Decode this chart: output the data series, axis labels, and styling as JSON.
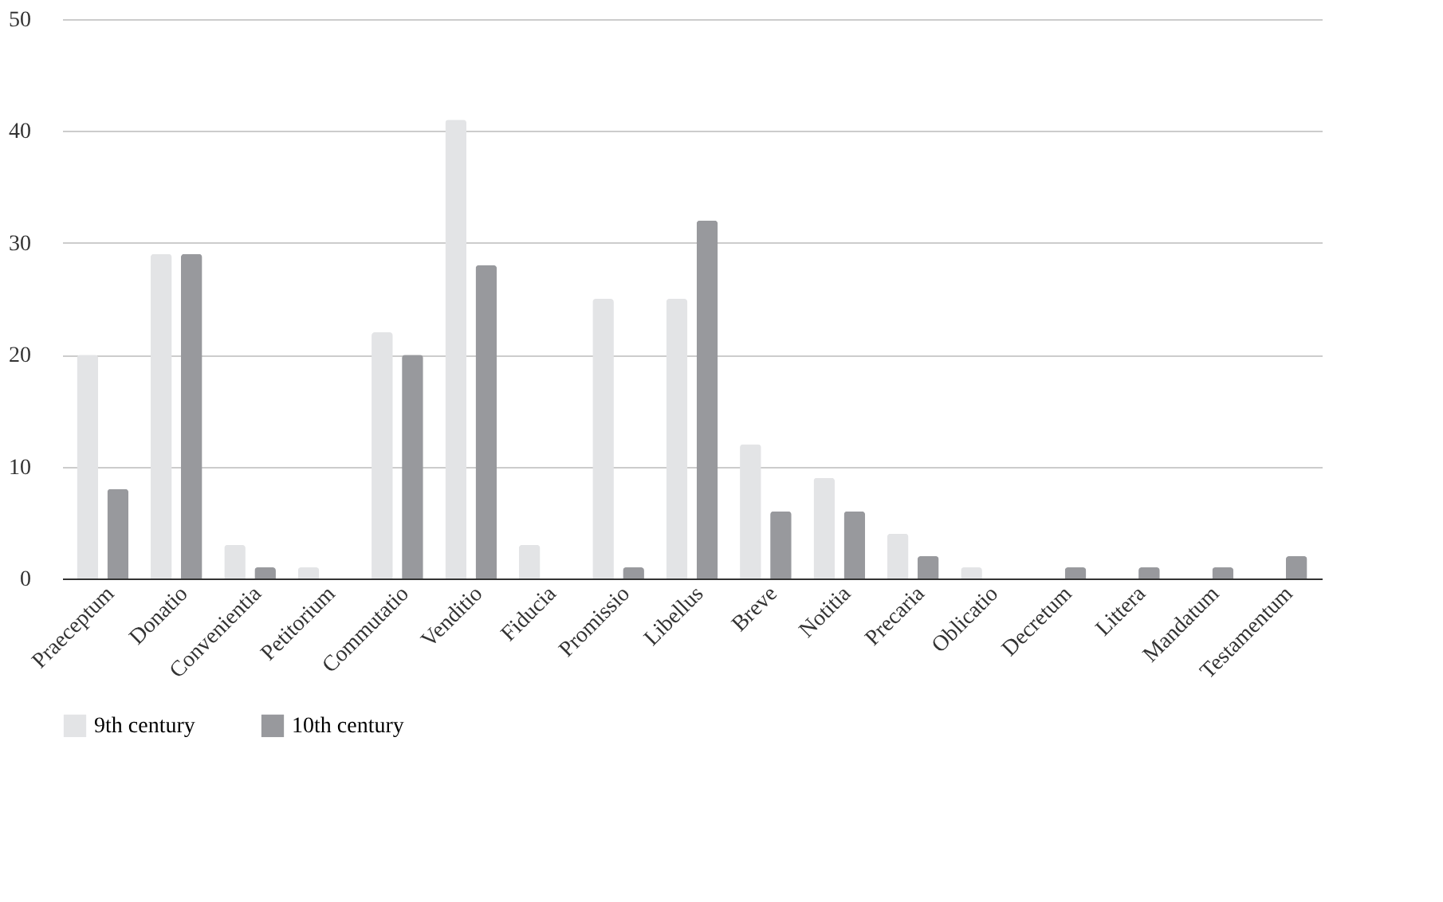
{
  "chart_data": {
    "type": "bar",
    "categories": [
      "Praeceptum",
      "Donatio",
      "Convenientia",
      "Petitorium",
      "Commutatio",
      "Venditio",
      "Fiducia",
      "Promissio",
      "Libellus",
      "Breve",
      "Notitia",
      "Precaria",
      "Oblicatio",
      "Decretum",
      "Littera",
      "Mandatum",
      "Testamentum"
    ],
    "series": [
      {
        "name": "9th century",
        "color": "#e3e4e6",
        "values": [
          20,
          29,
          3,
          1,
          22,
          41,
          3,
          25,
          25,
          12,
          9,
          4,
          1,
          0,
          0,
          0,
          0
        ]
      },
      {
        "name": "10th century",
        "color": "#98999d",
        "values": [
          8,
          29,
          1,
          0,
          20,
          28,
          0,
          1,
          32,
          6,
          6,
          2,
          0,
          1,
          1,
          1,
          2
        ]
      }
    ],
    "ylim": [
      0,
      50
    ],
    "yticks": [
      0,
      10,
      20,
      30,
      40,
      50
    ],
    "grid": "y",
    "legend": "bottom"
  }
}
